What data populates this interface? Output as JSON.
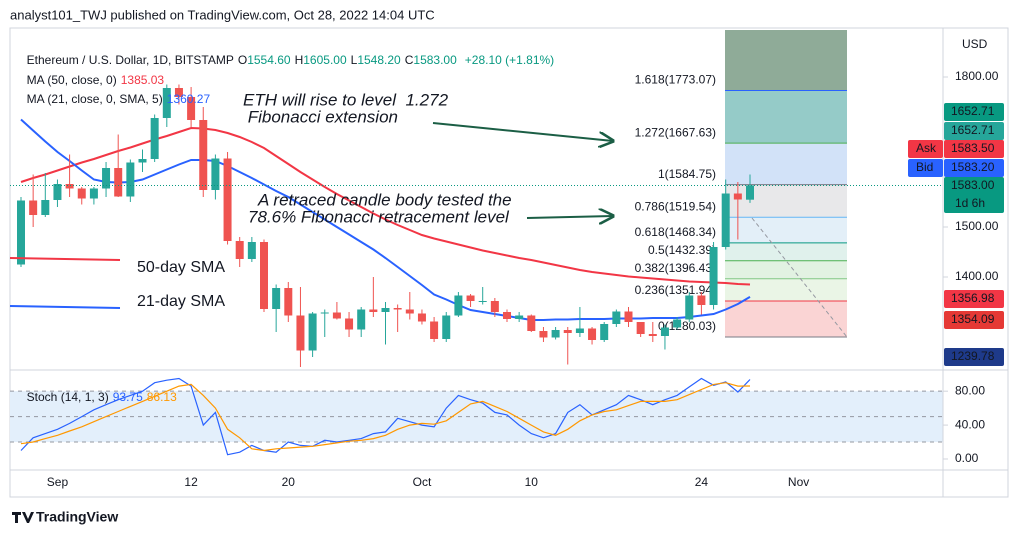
{
  "header": "analyst101_TWJ published on TradingView.com, Oct 28, 2022 14:04 UTC",
  "footer": "TradingView",
  "chart_data": {
    "type": "candlestick",
    "title": "Ethereum / U.S. Dollar, 1D, BITSTAMP",
    "ohlc_legend": [
      {
        "key": "O",
        "value": "1554.60"
      },
      {
        "key": "H",
        "value": "1605.00"
      },
      {
        "key": "L",
        "value": "1548.20"
      },
      {
        "key": "C",
        "value": "1583.00"
      }
    ],
    "change": "+28.10 (+1.81%)",
    "categories": [
      null,
      null,
      null,
      "Sep",
      null,
      null,
      null,
      null,
      null,
      null,
      null,
      null,
      null,
      null,
      "12",
      null,
      null,
      null,
      null,
      null,
      null,
      null,
      "20",
      null,
      null,
      null,
      null,
      null,
      null,
      null,
      null,
      null,
      null,
      "Oct",
      null,
      null,
      null,
      null,
      null,
      null,
      null,
      null,
      "10",
      null,
      null,
      null,
      null,
      null,
      null,
      null,
      null,
      null,
      null,
      null,
      null,
      null,
      "24",
      null,
      null,
      null,
      null,
      null,
      null,
      null,
      "Nov"
    ],
    "open": [
      1425,
      1553,
      1524,
      1554,
      1586,
      1577,
      1557,
      1577,
      1618,
      1561,
      1629,
      1636,
      1718,
      1778,
      1760,
      1714,
      1574,
      1637,
      1472,
      1436,
      1470,
      1336,
      1378,
      1323,
      1253,
      1327,
      1329,
      1317,
      1295,
      1335,
      1330,
      1338,
      1335,
      1327,
      1311,
      1276,
      1323,
      1363,
      1352,
      1352,
      1330,
      1316,
      1323,
      1292,
      1279,
      1294,
      1288,
      1297,
      1274,
      1306,
      1331,
      1310,
      1286,
      1282,
      1299,
      1315,
      1363,
      1344,
      1460,
      1567,
      1554.6,
      null,
      null,
      null,
      null
    ],
    "high": [
      1560,
      1605,
      1608,
      1595,
      1645,
      1580,
      1580,
      1630,
      1685,
      1635,
      1655,
      1725,
      1785,
      1785,
      1780,
      1740,
      1645,
      1650,
      1480,
      1480,
      1475,
      1385,
      1390,
      1380,
      1330,
      1335,
      1350,
      1330,
      1340,
      1400,
      1350,
      1345,
      1370,
      1335,
      1320,
      1330,
      1370,
      1366,
      1380,
      1358,
      1335,
      1330,
      1325,
      1300,
      1300,
      1300,
      1340,
      1300,
      1310,
      1335,
      1340,
      1310,
      1310,
      1305,
      1320,
      1370,
      1370,
      1470,
      1595,
      1590,
      1605,
      null,
      null,
      null,
      null
    ],
    "low": [
      1420,
      1500,
      1520,
      1540,
      1560,
      1545,
      1545,
      1560,
      1560,
      1550,
      1610,
      1630,
      1700,
      1745,
      1700,
      1560,
      1555,
      1465,
      1420,
      1430,
      1330,
      1290,
      1310,
      1220,
      1240,
      1280,
      1315,
      1280,
      1280,
      1320,
      1265,
      1290,
      1315,
      1305,
      1270,
      1270,
      1320,
      1340,
      1345,
      1320,
      1310,
      1310,
      1290,
      1270,
      1275,
      1225,
      1280,
      1265,
      1270,
      1300,
      1300,
      1280,
      1270,
      1255,
      1295,
      1310,
      1325,
      1335,
      1455,
      1475,
      1548.2,
      null,
      null,
      null,
      null
    ],
    "close": [
      1553,
      1524,
      1554,
      1586,
      1577,
      1557,
      1577,
      1618,
      1561,
      1629,
      1636,
      1718,
      1778,
      1760,
      1714,
      1574,
      1637,
      1472,
      1436,
      1470,
      1336,
      1378,
      1323,
      1253,
      1327,
      1329,
      1317,
      1295,
      1335,
      1330,
      1338,
      1335,
      1327,
      1311,
      1276,
      1323,
      1363,
      1352,
      1352,
      1330,
      1316,
      1323,
      1292,
      1279,
      1294,
      1288,
      1297,
      1274,
      1306,
      1331,
      1310,
      1286,
      1282,
      1299,
      1315,
      1363,
      1344,
      1460,
      1567,
      1555,
      1583,
      null,
      null,
      null,
      null
    ],
    "up_color": "#26a69a",
    "down_color": "#ef5350",
    "ylim": [
      1214,
      1894
    ],
    "yticks": [
      {
        "value": 1800,
        "label": "1800.00"
      },
      {
        "value": 1500,
        "label": "1500.00"
      },
      {
        "value": 1400,
        "label": "1400.00"
      }
    ],
    "y_axis_label": "USD",
    "overlays": [
      {
        "name": "MA (50, close, 0)",
        "color": "#f23645",
        "values": [
          1590,
          1598,
          1605,
          1613,
          1621,
          1629,
          1636,
          1644,
          1652,
          1659,
          1667,
          1675,
          1682,
          1690,
          1698,
          1697,
          1694,
          1688,
          1680,
          1670,
          1658,
          1642,
          1626,
          1610,
          1595,
          1580,
          1566,
          1553,
          1540,
          1527,
          1515,
          1504,
          1494,
          1484,
          1477,
          1471,
          1465,
          1459,
          1453,
          1448,
          1443,
          1438,
          1434,
          1429,
          1424,
          1419,
          1414,
          1410,
          1407,
          1404,
          1401,
          1399,
          1397,
          1395,
          1393,
          1391,
          1390,
          1389,
          1388,
          1386,
          1385.03,
          null,
          null,
          null,
          null
        ]
      },
      {
        "name": "MA (21, close, 0, SMA, 5)",
        "color": "#2962ff",
        "values": [
          1715,
          1693,
          1671,
          1650,
          1632,
          1613,
          1595,
          1590,
          1589,
          1590,
          1595,
          1605,
          1615,
          1625,
          1634,
          1634,
          1632,
          1622,
          1610,
          1598,
          1585,
          1572,
          1560,
          1545,
          1530,
          1515,
          1500,
          1485,
          1470,
          1455,
          1438,
          1420,
          1402,
          1384,
          1365,
          1355,
          1344,
          1334,
          1330,
          1326,
          1322,
          1318,
          1314,
          1314,
          1315,
          1315,
          1316,
          1316,
          1316,
          1317,
          1317,
          1317,
          1318,
          1318,
          1318,
          1320,
          1323,
          1326,
          1335,
          1346,
          1360.27,
          null,
          null,
          null,
          null
        ]
      }
    ],
    "fibonacci": [
      {
        "label": "0(1280.03)",
        "price": 1280.03,
        "color": "#787b86",
        "fill": "#fad4d4"
      },
      {
        "label": "0.236(1351.94)",
        "price": 1351.94,
        "color": "#f23645",
        "fill": "#eaf5e6"
      },
      {
        "label": "0.382(1396.43)",
        "price": 1396.43,
        "color": "#81c784",
        "fill": "#e2f2e2"
      },
      {
        "label": "0.5(1432.39)",
        "price": 1432.39,
        "color": "#4caf50",
        "fill": "#e0f1ec"
      },
      {
        "label": "0.618(1468.34)",
        "price": 1468.34,
        "color": "#089981",
        "fill": "#e3eff8"
      },
      {
        "label": "0.786(1519.54)",
        "price": 1519.54,
        "color": "#64b5f6",
        "fill": "#e8e8ea"
      },
      {
        "label": "1(1584.75)",
        "price": 1584.75,
        "color": "#787b86",
        "fill": "#d2e2f8"
      },
      {
        "label": "1.272(1667.63)",
        "price": 1667.63,
        "color": "#4caf50",
        "fill": "#95cbc8"
      },
      {
        "label": "1.618(1773.07)",
        "price": 1773.07,
        "color": "#2962ff",
        "fill": "#8fab98"
      }
    ],
    "annotations": [
      {
        "lines": [
          "ETH will rise to level  1.272",
          " Fibonacci extension"
        ],
        "color": "#131722"
      },
      {
        "lines": [
          "A retraced candle body tested the",
          "78.6% Fibonacci retracement level"
        ],
        "color": "#131722"
      },
      {
        "lines": [
          "50-day SMA"
        ],
        "color": "#f23645"
      },
      {
        "lines": [
          "21-day SMA"
        ],
        "color": "#2962ff"
      }
    ],
    "price_tags": [
      {
        "value": 1652.71,
        "color": "#089981"
      },
      {
        "value": 1652.71,
        "color": "#26a69a"
      },
      {
        "text": "Ask",
        "value": 1583.5,
        "label": "1583.50",
        "color": "#f23645"
      },
      {
        "text": "Bid",
        "value": 1583.2,
        "label": "1583.20",
        "color": "#2962ff"
      },
      {
        "value": 1583,
        "label": "1583.00",
        "sub": "1d 6h",
        "color": "#089981"
      },
      {
        "value": 1356.98,
        "color": "#f23645"
      },
      {
        "value": 1354.09,
        "color": "#e53935"
      },
      {
        "value": 1239.78,
        "color": "#1e3a8a"
      }
    ],
    "stochastic": {
      "name": "Stoch (14, 1, 3)",
      "ylim": [
        -13,
        105
      ],
      "yticks": [
        {
          "value": 80,
          "label": "80.00"
        },
        {
          "value": 40,
          "label": "40.00"
        },
        {
          "value": 0,
          "label": "0.00"
        }
      ],
      "levels": [
        80,
        50,
        20
      ],
      "band_color": "#e3effb",
      "series": [
        {
          "color": "#2962ff",
          "values": [
            10,
            25,
            30,
            35,
            42,
            50,
            58,
            64,
            70,
            75,
            80,
            90,
            93,
            95,
            86,
            40,
            55,
            5,
            8,
            16,
            10,
            8,
            20,
            16,
            15,
            22,
            20,
            22,
            24,
            30,
            32,
            48,
            44,
            40,
            38,
            60,
            75,
            70,
            66,
            55,
            52,
            40,
            30,
            25,
            30,
            55,
            64,
            52,
            58,
            64,
            75,
            70,
            64,
            70,
            75,
            85,
            95,
            87,
            91,
            79,
            93.75,
            null,
            null,
            null,
            null
          ]
        },
        {
          "color": "#ff9800",
          "values": [
            18,
            20,
            24,
            28,
            33,
            38,
            44,
            50,
            56,
            62,
            68,
            74,
            80,
            86,
            88,
            75,
            60,
            35,
            25,
            12,
            10,
            12,
            13,
            14,
            15,
            17,
            19,
            21,
            22,
            24,
            28,
            35,
            40,
            42,
            41,
            45,
            55,
            65,
            68,
            62,
            56,
            48,
            40,
            32,
            28,
            35,
            45,
            52,
            56,
            58,
            63,
            68,
            68,
            68,
            70,
            76,
            82,
            88,
            90,
            86,
            86.13,
            null,
            null,
            null,
            null
          ]
        }
      ]
    }
  }
}
